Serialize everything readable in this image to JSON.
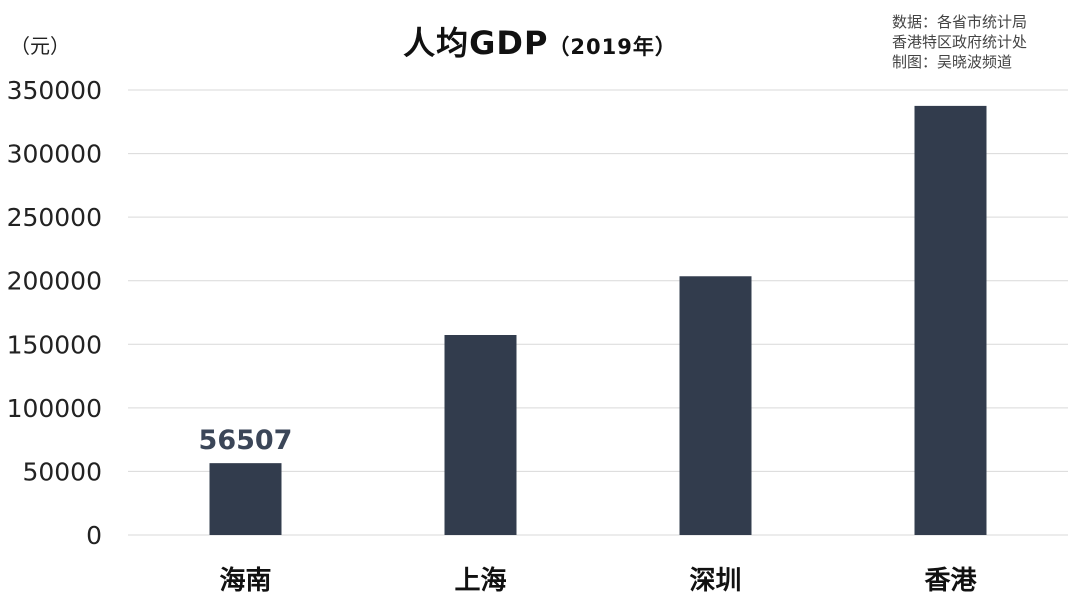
{
  "header": {
    "unit": "（元）",
    "title_main": "人均GDP",
    "title_sub": "（2019年）",
    "source_lines": [
      "数据：各省市统计局",
      "香港特区政府统计处",
      "制图：吴晓波频道"
    ]
  },
  "chart_data": {
    "type": "bar",
    "title": "人均GDP（2019年）",
    "ylabel": "（元）",
    "xlabel": "",
    "categories": [
      "海南",
      "上海",
      "深圳",
      "香港"
    ],
    "values": [
      56507,
      157300,
      203500,
      337500
    ],
    "ylim": [
      0,
      350000
    ],
    "yticks": [
      "0",
      "50000",
      "100000",
      "150000",
      "200000",
      "250000",
      "300000",
      "350000"
    ],
    "data_labels": [
      "56507",
      "",
      "",
      ""
    ],
    "grid": true,
    "legend": "none",
    "colors": {
      "bar": "#323c4d",
      "grid": "#d9d9d9",
      "label": "#3b4658",
      "axis_text": "#222222",
      "category_text": "#111111"
    }
  }
}
